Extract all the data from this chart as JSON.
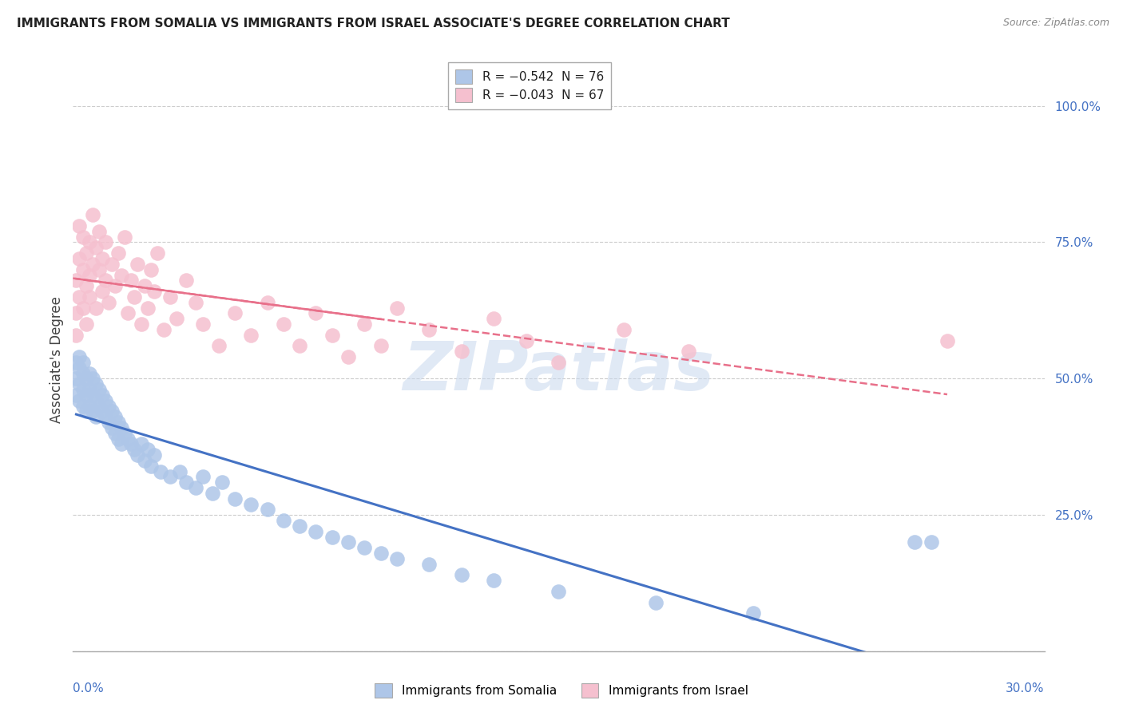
{
  "title": "IMMIGRANTS FROM SOMALIA VS IMMIGRANTS FROM ISRAEL ASSOCIATE'S DEGREE CORRELATION CHART",
  "source": "Source: ZipAtlas.com",
  "ylabel": "Associate's Degree",
  "ytick_vals": [
    0.0,
    0.25,
    0.5,
    0.75,
    1.0
  ],
  "ytick_labels": [
    "",
    "25.0%",
    "50.0%",
    "75.0%",
    "100.0%"
  ],
  "xtick_left": "0.0%",
  "xtick_right": "30.0%",
  "xlim": [
    0.0,
    0.3
  ],
  "ylim": [
    0.0,
    1.07
  ],
  "legend_somalia": "R = −0.542  N = 76",
  "legend_israel": "R = −0.043  N = 67",
  "color_somalia_fill": "#aec6e8",
  "color_israel_fill": "#f5c0cf",
  "line_somalia_color": "#4472c4",
  "line_israel_color": "#e8708a",
  "watermark_text": "ZIPatlas",
  "title_fontsize": 11,
  "source_fontsize": 9,
  "tick_fontsize": 11,
  "legend_fontsize": 11,
  "ylabel_fontsize": 12,
  "somalia_x": [
    0.001,
    0.001,
    0.001,
    0.002,
    0.002,
    0.002,
    0.002,
    0.003,
    0.003,
    0.003,
    0.003,
    0.004,
    0.004,
    0.004,
    0.005,
    0.005,
    0.005,
    0.006,
    0.006,
    0.006,
    0.007,
    0.007,
    0.007,
    0.008,
    0.008,
    0.009,
    0.009,
    0.01,
    0.01,
    0.011,
    0.011,
    0.012,
    0.012,
    0.013,
    0.013,
    0.014,
    0.014,
    0.015,
    0.015,
    0.016,
    0.017,
    0.018,
    0.019,
    0.02,
    0.021,
    0.022,
    0.023,
    0.024,
    0.025,
    0.027,
    0.03,
    0.033,
    0.035,
    0.038,
    0.04,
    0.043,
    0.046,
    0.05,
    0.055,
    0.06,
    0.065,
    0.07,
    0.075,
    0.08,
    0.085,
    0.09,
    0.095,
    0.1,
    0.11,
    0.12,
    0.13,
    0.15,
    0.18,
    0.21,
    0.26,
    0.265
  ],
  "somalia_y": [
    0.5,
    0.53,
    0.47,
    0.52,
    0.49,
    0.54,
    0.46,
    0.51,
    0.48,
    0.53,
    0.45,
    0.5,
    0.47,
    0.44,
    0.51,
    0.48,
    0.45,
    0.5,
    0.47,
    0.44,
    0.49,
    0.46,
    0.43,
    0.48,
    0.45,
    0.47,
    0.44,
    0.46,
    0.43,
    0.45,
    0.42,
    0.44,
    0.41,
    0.43,
    0.4,
    0.42,
    0.39,
    0.41,
    0.38,
    0.4,
    0.39,
    0.38,
    0.37,
    0.36,
    0.38,
    0.35,
    0.37,
    0.34,
    0.36,
    0.33,
    0.32,
    0.33,
    0.31,
    0.3,
    0.32,
    0.29,
    0.31,
    0.28,
    0.27,
    0.26,
    0.24,
    0.23,
    0.22,
    0.21,
    0.2,
    0.19,
    0.18,
    0.17,
    0.16,
    0.14,
    0.13,
    0.11,
    0.09,
    0.07,
    0.2,
    0.2
  ],
  "israel_x": [
    0.001,
    0.001,
    0.001,
    0.002,
    0.002,
    0.002,
    0.003,
    0.003,
    0.003,
    0.004,
    0.004,
    0.004,
    0.005,
    0.005,
    0.005,
    0.006,
    0.006,
    0.007,
    0.007,
    0.008,
    0.008,
    0.009,
    0.009,
    0.01,
    0.01,
    0.011,
    0.012,
    0.013,
    0.014,
    0.015,
    0.016,
    0.017,
    0.018,
    0.019,
    0.02,
    0.021,
    0.022,
    0.023,
    0.024,
    0.025,
    0.026,
    0.028,
    0.03,
    0.032,
    0.035,
    0.038,
    0.04,
    0.045,
    0.05,
    0.055,
    0.06,
    0.065,
    0.07,
    0.075,
    0.08,
    0.085,
    0.09,
    0.095,
    0.1,
    0.11,
    0.12,
    0.13,
    0.14,
    0.15,
    0.17,
    0.19,
    0.27
  ],
  "israel_y": [
    0.62,
    0.68,
    0.58,
    0.72,
    0.65,
    0.78,
    0.7,
    0.63,
    0.76,
    0.67,
    0.73,
    0.6,
    0.69,
    0.75,
    0.65,
    0.71,
    0.8,
    0.74,
    0.63,
    0.7,
    0.77,
    0.66,
    0.72,
    0.68,
    0.75,
    0.64,
    0.71,
    0.67,
    0.73,
    0.69,
    0.76,
    0.62,
    0.68,
    0.65,
    0.71,
    0.6,
    0.67,
    0.63,
    0.7,
    0.66,
    0.73,
    0.59,
    0.65,
    0.61,
    0.68,
    0.64,
    0.6,
    0.56,
    0.62,
    0.58,
    0.64,
    0.6,
    0.56,
    0.62,
    0.58,
    0.54,
    0.6,
    0.56,
    0.63,
    0.59,
    0.55,
    0.61,
    0.57,
    0.53,
    0.59,
    0.55,
    0.57
  ]
}
